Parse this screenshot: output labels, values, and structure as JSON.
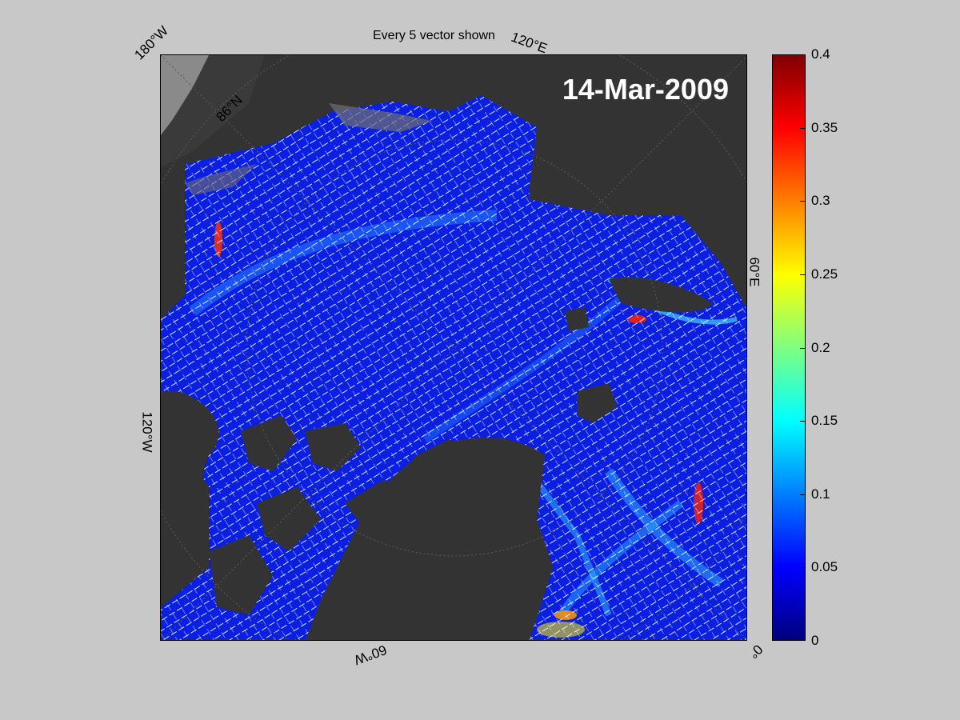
{
  "figure": {
    "title": "Every 5 vector shown",
    "date": "14-Mar-2009"
  },
  "map_labels": {
    "lon_180w": "180°W",
    "lon_120e": "120°E",
    "lon_60e": "60°E",
    "lon_120w": "120°W",
    "lon_60w": "60°W",
    "lon_0": "0°",
    "lat_86n": "86°N"
  },
  "colorbar": {
    "ticks": [
      "0",
      "0.05",
      "0.1",
      "0.15",
      "0.2",
      "0.25",
      "0.3",
      "0.35",
      "0.4"
    ],
    "min": 0,
    "max": 0.4,
    "colormap": "jet",
    "colors": [
      "#00007f",
      "#0000ff",
      "#007fff",
      "#00ffff",
      "#7fff7f",
      "#ffff00",
      "#ff7f00",
      "#ff0000",
      "#7f0000"
    ]
  },
  "colors": {
    "land": "#333333",
    "ocean_outside": "#8a8a8a",
    "ice_base": "#0a1fe0",
    "vector": "#ffffff",
    "background": "#c8c8c8"
  }
}
